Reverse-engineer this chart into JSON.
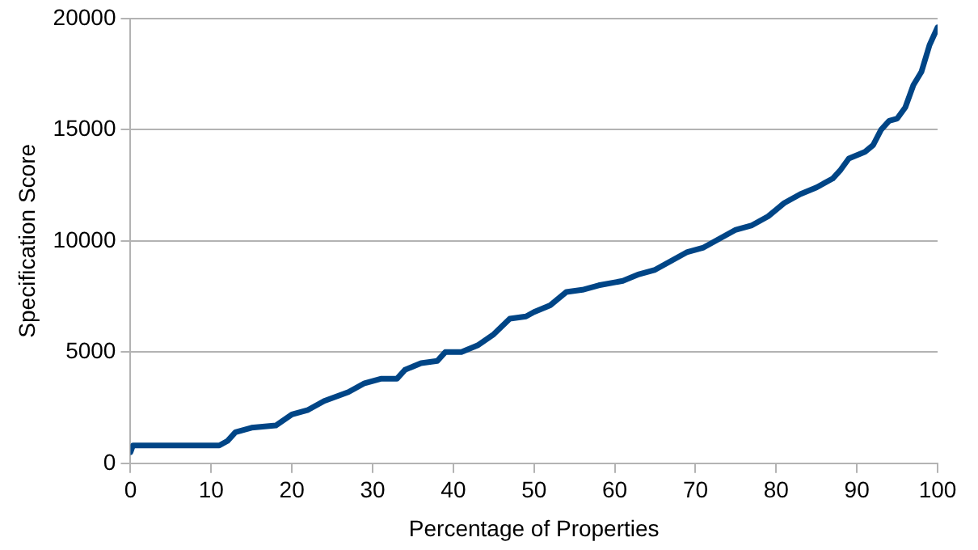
{
  "chart_data": {
    "type": "line",
    "xlabel": "Percentage of Properties",
    "ylabel": "Specification Score",
    "x": [
      0,
      0.3,
      11,
      12,
      13,
      15,
      18,
      20,
      22,
      24,
      27,
      29,
      31,
      33,
      34,
      36,
      38,
      39,
      41,
      43,
      45,
      47,
      49,
      50,
      52,
      54,
      56,
      58,
      61,
      63,
      65,
      67,
      69,
      71,
      73,
      75,
      77,
      79,
      81,
      83,
      85,
      87,
      88,
      89,
      91,
      92,
      93,
      94,
      95,
      96,
      97,
      98,
      99,
      100
    ],
    "series": [
      {
        "color": "#004586",
        "values": [
          500,
          800,
          800,
          1000,
          1400,
          1600,
          1700,
          2200,
          2400,
          2800,
          3200,
          3600,
          3800,
          3800,
          4200,
          4500,
          4600,
          5000,
          5000,
          5300,
          5800,
          6500,
          6600,
          6800,
          7100,
          7700,
          7800,
          8000,
          8200,
          8500,
          8700,
          9100,
          9500,
          9700,
          10100,
          10500,
          10700,
          11100,
          11700,
          12100,
          12400,
          12800,
          13200,
          13700,
          14000,
          14300,
          15000,
          15400,
          15500,
          16000,
          17000,
          17600,
          18800,
          19600
        ]
      }
    ],
    "xlim": [
      0,
      100
    ],
    "xticks": [
      0,
      10,
      20,
      30,
      40,
      50,
      60,
      70,
      80,
      90,
      100
    ],
    "ylim": [
      0,
      20000
    ],
    "yticks": [
      0,
      5000,
      10000,
      15000,
      20000
    ],
    "grid": "y",
    "legend": false,
    "marker": "none",
    "line_style": "solid"
  }
}
